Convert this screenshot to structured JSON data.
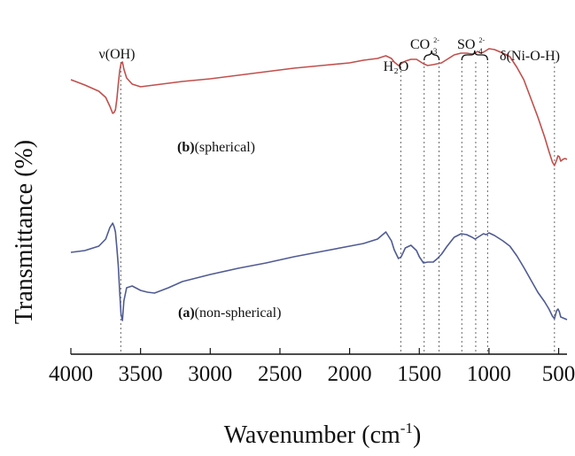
{
  "chart_data": {
    "type": "line",
    "xlabel": "Wavenumber (cm⁻¹)",
    "ylabel": "Transmittance (%)",
    "xlim": [
      4000,
      440
    ],
    "x_reversed": true,
    "xticks": [
      4000,
      3500,
      3000,
      2500,
      2000,
      1500,
      1000,
      500
    ],
    "yticks_shown": false,
    "grid": false,
    "legend": "none",
    "series": [
      {
        "name": "(b)(spherical)",
        "label_bold": "(b)",
        "label_rest": "(spherical)",
        "color": "#c0504d",
        "x": [
          4000,
          3900,
          3800,
          3750,
          3720,
          3700,
          3690,
          3680,
          3670,
          3660,
          3650,
          3640,
          3630,
          3620,
          3600,
          3560,
          3500,
          3400,
          3200,
          3000,
          2800,
          2600,
          2400,
          2200,
          2000,
          1900,
          1800,
          1740,
          1700,
          1680,
          1650,
          1630,
          1600,
          1560,
          1520,
          1500,
          1470,
          1440,
          1400,
          1370,
          1340,
          1300,
          1250,
          1200,
          1160,
          1120,
          1100,
          1080,
          1060,
          1040,
          1020,
          1000,
          960,
          900,
          850,
          800,
          750,
          700,
          650,
          600,
          570,
          545,
          530,
          515,
          505,
          495,
          485,
          470,
          455,
          440
        ],
        "y": [
          90,
          96,
          103,
          110,
          120,
          128,
          127,
          124,
          112,
          95,
          80,
          72,
          70,
          78,
          88,
          95,
          98,
          96,
          92,
          89,
          85,
          81,
          77,
          74,
          71,
          68,
          66,
          63,
          66,
          70,
          74,
          72,
          69,
          67,
          67,
          69,
          72,
          74,
          73,
          72,
          71,
          67,
          62,
          60,
          60,
          61,
          60,
          58,
          60,
          59,
          57,
          55,
          56,
          60,
          64,
          76,
          90,
          111,
          132,
          155,
          171,
          183,
          187,
          181,
          176,
          177,
          182,
          180,
          179,
          180
        ]
      },
      {
        "name": "(a)(non-spherical)",
        "label_bold": "(a)",
        "label_rest": "(non-spherical)",
        "color": "#4f5b93",
        "x": [
          4000,
          3900,
          3800,
          3750,
          3720,
          3700,
          3690,
          3680,
          3670,
          3660,
          3650,
          3640,
          3630,
          3620,
          3600,
          3560,
          3500,
          3450,
          3400,
          3300,
          3200,
          3000,
          2800,
          2600,
          2400,
          2200,
          2000,
          1900,
          1800,
          1740,
          1700,
          1680,
          1650,
          1630,
          1600,
          1560,
          1520,
          1500,
          1470,
          1440,
          1400,
          1370,
          1340,
          1300,
          1250,
          1200,
          1160,
          1120,
          1100,
          1080,
          1060,
          1040,
          1020,
          1000,
          960,
          900,
          850,
          800,
          750,
          700,
          650,
          600,
          570,
          545,
          530,
          515,
          505,
          495,
          485,
          470,
          455,
          440
        ],
        "y": [
          285,
          283,
          278,
          270,
          257,
          252,
          256,
          262,
          280,
          300,
          330,
          355,
          362,
          340,
          325,
          323,
          328,
          330,
          331,
          325,
          318,
          310,
          303,
          297,
          290,
          284,
          278,
          275,
          270,
          262,
          272,
          282,
          292,
          290,
          280,
          277,
          283,
          290,
          297,
          296,
          296,
          292,
          287,
          278,
          268,
          264,
          265,
          268,
          270,
          268,
          266,
          264,
          265,
          263,
          266,
          272,
          278,
          289,
          302,
          316,
          330,
          341,
          349,
          357,
          360,
          351,
          349,
          352,
          358,
          359,
          360,
          361
        ]
      }
    ],
    "reference_lines_x": [
      3642,
      1633,
      1465,
      1358,
      1195,
      1095,
      1010,
      530
    ],
    "annotations": {
      "oh": "ν(OH)",
      "h2o": "H₂O",
      "co3_base": "CO",
      "co3_sub": "3",
      "co3_sup": "2-",
      "so4_base": "SO",
      "so4_sub": "4",
      "so4_sup": "2-",
      "nioh": "δ(Ni-O-H)"
    }
  }
}
